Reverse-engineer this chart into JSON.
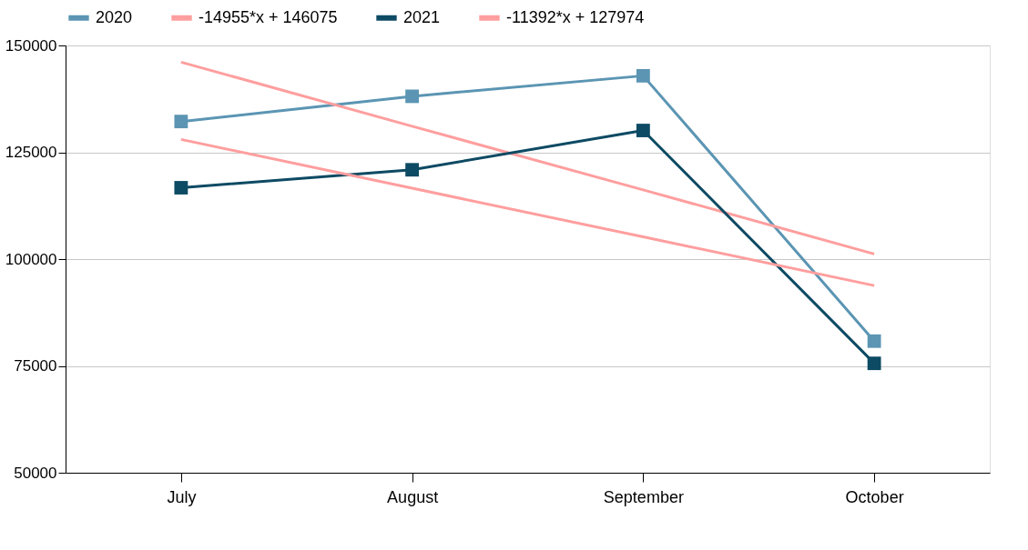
{
  "chart_data": {
    "type": "line",
    "categories": [
      "July",
      "August",
      "September",
      "October"
    ],
    "ylim": [
      50000,
      150000
    ],
    "yticks": [
      50000,
      75000,
      100000,
      125000,
      150000
    ],
    "grid": "y",
    "legend": "top",
    "marker": "square",
    "line_style": "solid",
    "series": [
      {
        "name": "2020",
        "color": "#5b95b3",
        "values": [
          132200,
          138100,
          142900,
          80800
        ]
      },
      {
        "name": "-14955*x + 146075",
        "color": "#ff9e9e",
        "type": "line",
        "marker": "none",
        "values": [
          146100,
          131100,
          116200,
          101200
        ]
      },
      {
        "name": "2021",
        "color": "#0d4a63",
        "values": [
          116700,
          120900,
          130100,
          75600
        ]
      },
      {
        "name": "-11392*x + 127974",
        "color": "#ff9e9e",
        "type": "line",
        "marker": "none",
        "values": [
          128000,
          116600,
          105200,
          93800
        ]
      }
    ]
  }
}
